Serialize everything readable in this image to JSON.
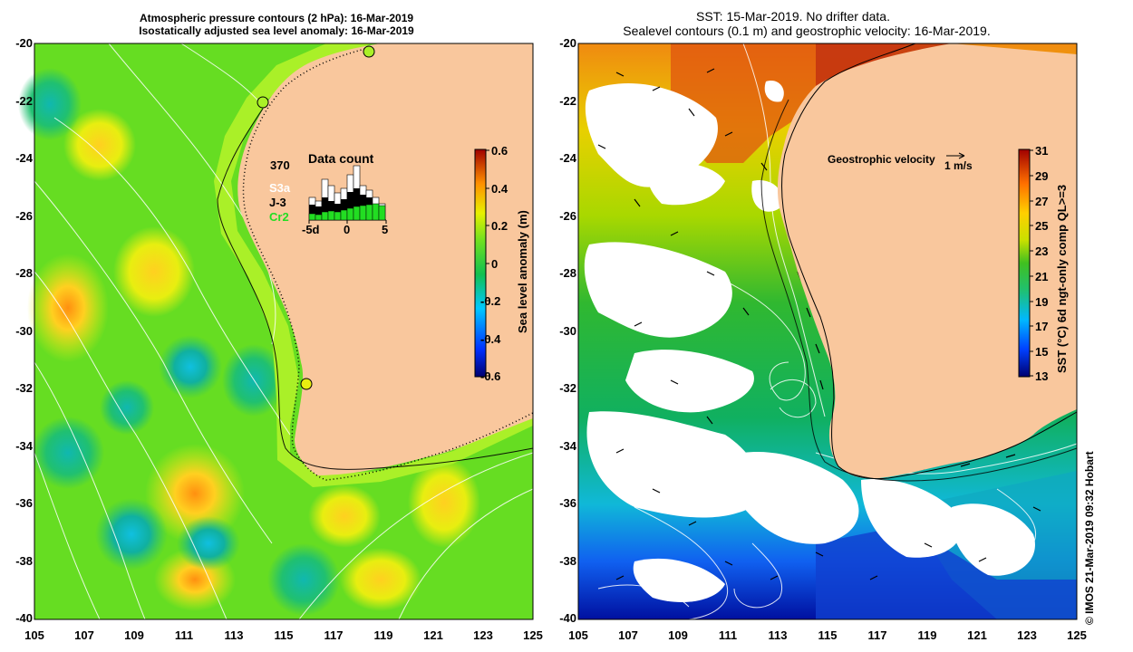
{
  "left_panel": {
    "title_line1": "Atmospheric pressure contours (2 hPa): 16-Mar-2019",
    "title_line2": "Isostatically adjusted sea level anomaly: 16-Mar-2019",
    "y_ticks": [
      "-20",
      "-22",
      "-24",
      "-26",
      "-28",
      "-30",
      "-32",
      "-34",
      "-36",
      "-38",
      "-40"
    ],
    "x_ticks": [
      "105",
      "107",
      "109",
      "111",
      "113",
      "115",
      "117",
      "119",
      "121",
      "123",
      "125"
    ],
    "colorbar": {
      "label": "Sea level anomaly (m)",
      "ticks": [
        "0.6",
        "0.4",
        "0.2",
        "0",
        "-0.2",
        "-0.4",
        "-0.6"
      ]
    },
    "data_count": {
      "title": "Data count",
      "max": "370",
      "legend": [
        {
          "label": "S3a",
          "color": "#ffffff"
        },
        {
          "label": "J-3",
          "color": "#000000"
        },
        {
          "label": "Cr2",
          "color": "#22dd22"
        }
      ],
      "x_ticks": [
        "-5d",
        "0",
        "5"
      ]
    }
  },
  "right_panel": {
    "title_line1": "SST: 15-Mar-2019. No drifter data.",
    "title_line2": "Sealevel contours (0.1 m) and geostrophic velocity: 16-Mar-2019.",
    "y_ticks": [
      "-20",
      "-22",
      "-24",
      "-26",
      "-28",
      "-30",
      "-32",
      "-34",
      "-36",
      "-38",
      "-40"
    ],
    "x_ticks": [
      "105",
      "107",
      "109",
      "111",
      "113",
      "115",
      "117",
      "119",
      "121",
      "123",
      "125"
    ],
    "velocity_legend": "Geostrophic velocity",
    "velocity_scale": "1 m/s",
    "colorbar": {
      "label": "SST (°C) 6d ngt-only comp QL>=3",
      "ticks": [
        "31",
        "29",
        "27",
        "25",
        "23",
        "21",
        "19",
        "17",
        "15",
        "13"
      ]
    }
  },
  "credit": "© IMOS 21-Mar-2019 09:32 Hobart",
  "colors": {
    "land": "#f9c79d",
    "sla_base": "#66dd22",
    "coast_band": "#aaf028"
  }
}
